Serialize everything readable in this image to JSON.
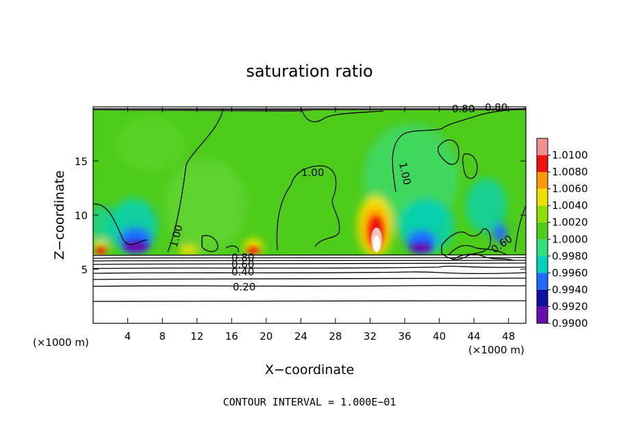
{
  "chart_data": {
    "type": "heatmap",
    "title": "saturation ratio",
    "xlabel": "X−coordinate",
    "ylabel": "Z−coordinate",
    "x_unit_left": "(×1000 m)",
    "x_unit_right": "(×1000 m)",
    "xlim": [
      0,
      50
    ],
    "ylim": [
      0,
      20
    ],
    "x_ticks": [
      4,
      8,
      12,
      16,
      20,
      24,
      28,
      32,
      36,
      40,
      44,
      48
    ],
    "y_ticks": [
      5,
      10,
      15
    ],
    "colorbar": {
      "levels": [
        0.99,
        0.992,
        0.994,
        0.996,
        0.998,
        1.0,
        1.002,
        1.004,
        1.006,
        1.008,
        1.01
      ],
      "labels": [
        "0.9900",
        "0.9920",
        "0.9940",
        "0.9960",
        "0.9980",
        "1.0000",
        "1.0020",
        "1.0040",
        "1.0060",
        "1.0080",
        "1.0100"
      ],
      "colors": [
        "#6a0dad",
        "#1010a0",
        "#1e6bff",
        "#00d0c0",
        "#2fe07a",
        "#4dcc1a",
        "#8ee000",
        "#f0e000",
        "#ff9a00",
        "#f01010",
        "#f09090"
      ]
    },
    "background_level": 1.0,
    "features": [
      {
        "x": 5.0,
        "z": 7.6,
        "value": 0.991,
        "kind": "subsaturated pocket"
      },
      {
        "x": 18.5,
        "z": 7.0,
        "value": 1.006,
        "kind": "supersaturated bubble"
      },
      {
        "x": 32.5,
        "z": 8.0,
        "value": 1.01,
        "kind": "supersaturated plume"
      },
      {
        "x": 11.0,
        "z": 6.9,
        "value": 1.006,
        "kind": "supersaturated band"
      },
      {
        "x": 39.0,
        "z": 7.4,
        "value": 0.992,
        "kind": "subsaturated pocket"
      }
    ],
    "contour_labels": [
      "1.00",
      "1.00",
      "1.00",
      "0.80",
      "0.60",
      "0.40",
      "0.20",
      "0.80",
      "0.80",
      "0.60"
    ],
    "annotation": "CONTOUR INTERVAL = 1.000E−01"
  }
}
